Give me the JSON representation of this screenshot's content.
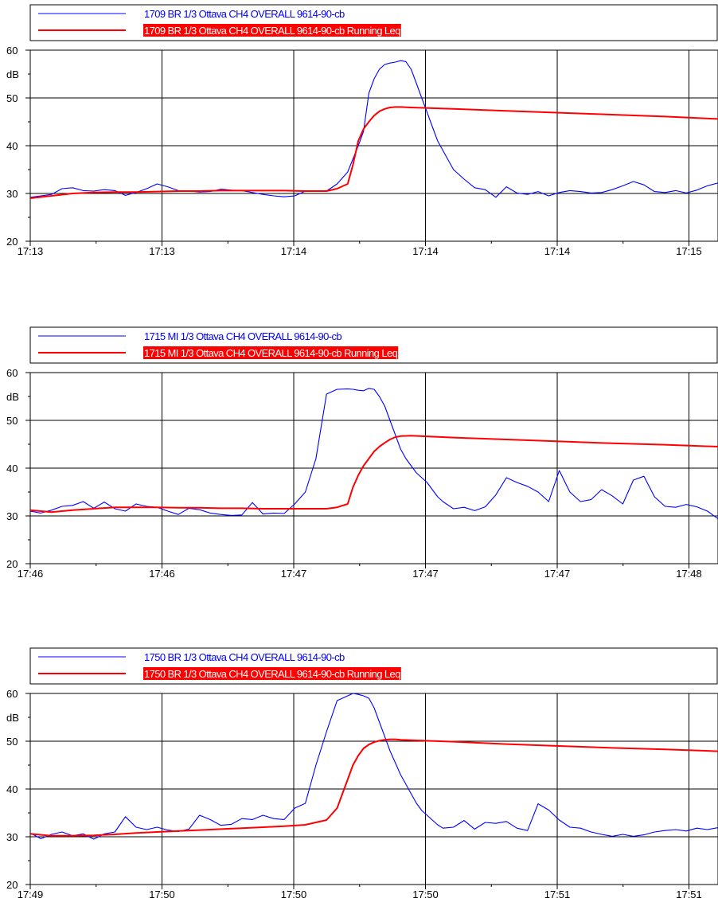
{
  "chart_data": [
    {
      "type": "line",
      "ylabel": "dB",
      "ylim": [
        20,
        60
      ],
      "yticks": [
        20,
        30,
        40,
        50,
        60
      ],
      "xlim": [
        0,
        130
      ],
      "x_tick_labels": [
        "17:13",
        "17:13",
        "17:14",
        "17:14",
        "17:14",
        "17:15"
      ],
      "grid": true,
      "legend_position": "top",
      "series": [
        {
          "name": "1709 BR 1/3 Ottava CH4 OVERALL 9614-90-cb",
          "color": "#0000ff",
          "x": [
            0,
            2,
            4,
            6,
            8,
            10,
            12,
            14,
            16,
            18,
            20,
            22,
            24,
            26,
            28,
            30,
            32,
            34,
            36,
            38,
            40,
            42,
            44,
            46,
            48,
            50,
            52,
            54,
            56,
            58,
            60,
            62,
            63,
            64,
            65,
            66,
            67,
            68,
            69,
            70,
            71,
            72,
            73,
            74,
            75,
            76,
            77,
            78,
            80,
            82,
            84,
            86,
            88,
            90,
            92,
            94,
            96,
            98,
            100,
            102,
            104,
            106,
            108,
            110,
            112,
            114,
            116,
            118,
            120,
            122,
            124,
            126,
            128,
            130
          ],
          "values": [
            29.2,
            29.5,
            29.8,
            31,
            31.2,
            30.6,
            30.5,
            30.8,
            30.6,
            29.6,
            30.2,
            31,
            32,
            31.4,
            30.6,
            30.5,
            30.3,
            30.4,
            30.9,
            30.7,
            30.6,
            30.2,
            29.8,
            29.5,
            29.3,
            29.5,
            30.5,
            30.5,
            30.5,
            32,
            34.5,
            40,
            43,
            51,
            54,
            56,
            57,
            57.3,
            57.5,
            57.8,
            57.6,
            56,
            53,
            50,
            47,
            44,
            41,
            39,
            35,
            33,
            31.2,
            30.8,
            29.2,
            31.4,
            30.1,
            29.8,
            30.4,
            29.5,
            30.2,
            30.6,
            30.4,
            30.1,
            30.2,
            30.8,
            31.6,
            32.5,
            31.8,
            30.4,
            30.2,
            30.6,
            30.1,
            30.7,
            31.6,
            32.2
          ]
        },
        {
          "name": "1709 BR 1/3 Ottava CH4 OVERALL 9614-90-cb Running Leq",
          "color": "#ff0000",
          "x": [
            0,
            4,
            8,
            12,
            16,
            20,
            24,
            28,
            32,
            36,
            40,
            44,
            48,
            52,
            56,
            58,
            60,
            61,
            62,
            63,
            64,
            65,
            66,
            67,
            68,
            69,
            70,
            72,
            80,
            90,
            100,
            110,
            120,
            130
          ],
          "values": [
            29.0,
            29.5,
            30.0,
            30.2,
            30.3,
            30.3,
            30.4,
            30.5,
            30.5,
            30.6,
            30.6,
            30.6,
            30.6,
            30.5,
            30.5,
            31.0,
            32.0,
            36.0,
            41.0,
            43.5,
            45.0,
            46.3,
            47.2,
            47.7,
            48.0,
            48.1,
            48.1,
            48.0,
            47.7,
            47.3,
            46.9,
            46.5,
            46.1,
            45.6
          ]
        }
      ]
    },
    {
      "type": "line",
      "ylabel": "dB",
      "ylim": [
        20,
        60
      ],
      "yticks": [
        20,
        30,
        40,
        50,
        60
      ],
      "xlim": [
        0,
        130
      ],
      "x_tick_labels": [
        "17:46",
        "17:46",
        "17:47",
        "17:47",
        "17:47",
        "17:48"
      ],
      "grid": true,
      "legend_position": "top",
      "series": [
        {
          "name": "1715 MI 1/3 Ottava CH4 OVERALL 9614-90-cb",
          "color": "#0000ff",
          "x": [
            0,
            2,
            4,
            6,
            8,
            10,
            12,
            14,
            16,
            18,
            20,
            22,
            24,
            26,
            28,
            30,
            32,
            34,
            36,
            38,
            40,
            42,
            44,
            46,
            48,
            50,
            52,
            54,
            56,
            58,
            60,
            61,
            62,
            63,
            64,
            65,
            66,
            67,
            68,
            69,
            70,
            71,
            72,
            73,
            74,
            75,
            76,
            77,
            78,
            80,
            82,
            84,
            86,
            88,
            90,
            92,
            94,
            96,
            98,
            100,
            102,
            104,
            106,
            108,
            110,
            112,
            114,
            116,
            118,
            120,
            122,
            124,
            126,
            128,
            130
          ],
          "values": [
            31.0,
            30.6,
            31.2,
            32.0,
            32.2,
            33.0,
            31.6,
            32.9,
            31.5,
            31.0,
            32.5,
            32.0,
            31.8,
            31.0,
            30.3,
            31.6,
            31.3,
            30.6,
            30.3,
            30.1,
            30.2,
            32.8,
            30.4,
            30.6,
            30.5,
            32.5,
            35.0,
            42.0,
            55.5,
            56.5,
            56.6,
            56.5,
            56.3,
            56.2,
            56.7,
            56.5,
            55.0,
            53.0,
            50.0,
            47.0,
            44.0,
            42.0,
            40.5,
            39.0,
            38.0,
            37.0,
            35.5,
            34.0,
            33.0,
            31.5,
            31.8,
            31.1,
            31.9,
            34.4,
            38.0,
            37.0,
            36.2,
            35.0,
            33.0,
            39.5,
            35.0,
            33.0,
            33.4,
            35.5,
            34.2,
            32.5,
            37.5,
            38.3,
            34.0,
            32.0,
            31.8,
            32.4,
            31.9,
            31.0,
            29.4
          ]
        },
        {
          "name": "1715 MI 1/3 Ottava CH4 OVERALL 9614-90-cb Running Leq",
          "color": "#ff0000",
          "x": [
            0,
            4,
            8,
            12,
            16,
            20,
            24,
            28,
            32,
            36,
            40,
            44,
            48,
            52,
            56,
            58,
            60,
            61,
            62,
            63,
            64,
            65,
            66,
            67,
            68,
            69,
            70,
            72,
            80,
            90,
            100,
            110,
            120,
            130
          ],
          "values": [
            31.2,
            30.8,
            31.2,
            31.5,
            31.8,
            31.8,
            31.8,
            31.7,
            31.7,
            31.6,
            31.6,
            31.5,
            31.5,
            31.5,
            31.5,
            31.8,
            32.5,
            36.0,
            38.5,
            40.5,
            42.0,
            43.5,
            44.5,
            45.3,
            46.0,
            46.5,
            46.7,
            46.8,
            46.4,
            46.0,
            45.6,
            45.2,
            44.9,
            44.5
          ]
        }
      ]
    },
    {
      "type": "line",
      "ylabel": "dB",
      "ylim": [
        20,
        60
      ],
      "yticks": [
        20,
        30,
        40,
        50,
        60
      ],
      "xlim": [
        0,
        130
      ],
      "x_tick_labels": [
        "17:49",
        "17:50",
        "17:50",
        "17:50",
        "17:51",
        "17:51"
      ],
      "grid": true,
      "legend_position": "top",
      "series": [
        {
          "name": "1750 BR 1/3 Ottava CH4 OVERALL 9614-90-cb",
          "color": "#0000ff",
          "x": [
            0,
            2,
            4,
            6,
            8,
            10,
            12,
            14,
            16,
            18,
            20,
            22,
            24,
            26,
            28,
            30,
            32,
            34,
            36,
            38,
            40,
            42,
            44,
            46,
            48,
            50,
            52,
            54,
            56,
            58,
            60,
            61,
            62,
            63,
            64,
            65,
            66,
            67,
            68,
            69,
            70,
            71,
            72,
            73,
            74,
            75,
            76,
            77,
            78,
            80,
            82,
            84,
            86,
            88,
            90,
            92,
            94,
            96,
            98,
            100,
            102,
            104,
            106,
            108,
            110,
            112,
            114,
            116,
            118,
            120,
            122,
            124,
            126,
            128,
            130
          ],
          "values": [
            30.8,
            29.6,
            30.5,
            31.0,
            30.2,
            30.6,
            29.5,
            30.6,
            31.0,
            34.2,
            32.0,
            31.5,
            32.0,
            31.4,
            31.1,
            31.6,
            34.5,
            33.6,
            32.4,
            32.6,
            33.8,
            33.6,
            34.5,
            33.8,
            33.6,
            36.0,
            37.0,
            45.0,
            52.0,
            58.5,
            59.5,
            60.0,
            59.8,
            59.5,
            59.0,
            57.0,
            54.0,
            51.0,
            48.0,
            45.5,
            43.0,
            41.0,
            39.0,
            37.0,
            35.5,
            34.5,
            33.5,
            32.5,
            31.8,
            32.0,
            33.4,
            31.6,
            33.0,
            32.8,
            33.2,
            31.8,
            31.3,
            36.9,
            35.6,
            33.5,
            32.0,
            31.8,
            31.0,
            30.5,
            30.1,
            30.5,
            30.1,
            30.4,
            31.0,
            31.3,
            31.5,
            31.2,
            31.8,
            31.5,
            31.9
          ]
        },
        {
          "name": "1750 BR 1/3 Ottava CH4 OVERALL 9614-90-cb Running Leq",
          "color": "#ff0000",
          "x": [
            0,
            4,
            8,
            12,
            16,
            20,
            24,
            28,
            32,
            36,
            40,
            44,
            48,
            52,
            56,
            58,
            60,
            61,
            62,
            63,
            64,
            65,
            66,
            67,
            68,
            69,
            70,
            72,
            80,
            90,
            100,
            110,
            120,
            130
          ],
          "values": [
            30.6,
            30.2,
            30.2,
            30.3,
            30.5,
            30.8,
            31.0,
            31.2,
            31.4,
            31.6,
            31.8,
            32.0,
            32.2,
            32.5,
            33.5,
            36.0,
            42.0,
            45.0,
            47.0,
            48.5,
            49.3,
            49.8,
            50.1,
            50.3,
            50.4,
            50.4,
            50.3,
            50.2,
            49.9,
            49.4,
            49.0,
            48.6,
            48.3,
            47.9
          ]
        }
      ]
    }
  ]
}
